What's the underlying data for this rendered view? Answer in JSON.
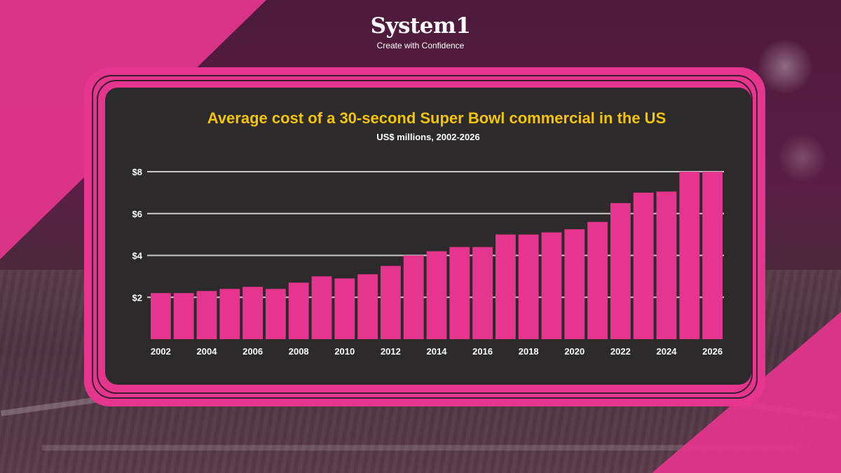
{
  "brand": {
    "name": "System1",
    "tagline": "Create with Confidence",
    "accent": "#e5358e",
    "title_color": "#f5c400",
    "panel_color": "#2d2a2b"
  },
  "chart_data": {
    "type": "bar",
    "title": "Average cost of a 30-second Super Bowl commercial in the US",
    "subtitle": "US$ millions, 2002-2026",
    "xlabel": "",
    "ylabel": "",
    "ylim": [
      0,
      8
    ],
    "y_ticks": [
      2,
      4,
      6,
      8
    ],
    "y_tick_labels": [
      "$2",
      "$4",
      "$6",
      "$8"
    ],
    "grid": "horizontal",
    "categories": [
      2002,
      2003,
      2004,
      2005,
      2006,
      2007,
      2008,
      2009,
      2010,
      2011,
      2012,
      2013,
      2014,
      2015,
      2016,
      2017,
      2018,
      2019,
      2020,
      2021,
      2022,
      2023,
      2024,
      2025,
      2026
    ],
    "x_tick_labels": [
      "2002",
      "2004",
      "2006",
      "2008",
      "2010",
      "2012",
      "2014",
      "2016",
      "2018",
      "2020",
      "2022",
      "2024",
      "2026"
    ],
    "values": [
      2.2,
      2.2,
      2.3,
      2.4,
      2.5,
      2.4,
      2.7,
      3.0,
      2.9,
      3.1,
      3.5,
      4.0,
      4.2,
      4.4,
      4.4,
      5.0,
      5.0,
      5.1,
      5.25,
      5.6,
      6.5,
      7.0,
      7.05,
      8.0,
      8.0
    ],
    "bar_color": "#e5358e"
  }
}
